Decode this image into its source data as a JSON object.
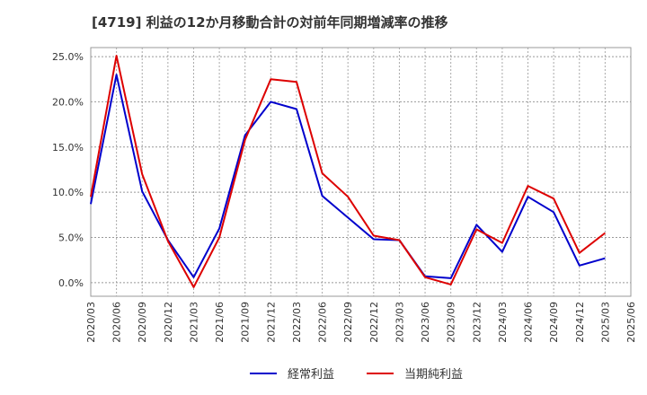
{
  "chart_data": {
    "type": "line",
    "title": "[4719]  利益の12か月移動合計の対前年同期増減率の推移",
    "categories": [
      "2020/03",
      "2020/06",
      "2020/09",
      "2020/12",
      "2021/03",
      "2021/06",
      "2021/09",
      "2021/12",
      "2022/03",
      "2022/06",
      "2022/09",
      "2022/12",
      "2023/03",
      "2023/06",
      "2023/09",
      "2023/12",
      "2024/03",
      "2024/06",
      "2024/09",
      "2024/12",
      "2025/03",
      "2025/06"
    ],
    "y_ticks": [
      "0.0%",
      "5.0%",
      "10.0%",
      "15.0%",
      "20.0%",
      "25.0%"
    ],
    "ylim": [
      -1.5,
      26.0
    ],
    "grid": true,
    "legend_position": "bottom",
    "series": [
      {
        "name": "経常利益",
        "color": "#0000cc",
        "values": [
          8.7,
          23.0,
          10.1,
          4.7,
          0.6,
          6.0,
          16.3,
          20.0,
          19.2,
          9.6,
          7.2,
          4.8,
          4.7,
          0.7,
          0.5,
          6.4,
          3.4,
          9.5,
          7.8,
          1.9,
          2.7,
          null
        ]
      },
      {
        "name": "当期純利益",
        "color": "#dd0000",
        "values": [
          9.5,
          25.1,
          12.0,
          4.6,
          -0.5,
          5.0,
          15.8,
          22.5,
          22.2,
          12.1,
          9.5,
          5.2,
          4.7,
          0.6,
          -0.2,
          5.9,
          4.4,
          10.7,
          9.3,
          3.3,
          5.5,
          null
        ]
      }
    ]
  }
}
